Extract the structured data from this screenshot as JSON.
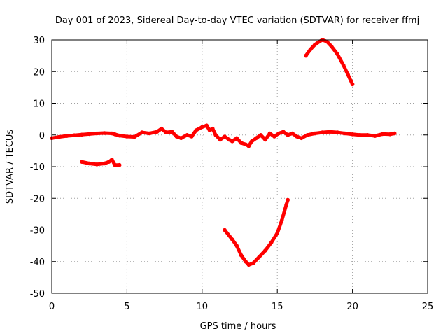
{
  "chart_data": {
    "type": "scatter",
    "title": "Day 001 of 2023, Sidereal Day-to-day VTEC variation (SDTVAR) for receiver ffmj",
    "xlabel": "GPS time / hours",
    "ylabel": "SDTVAR / TECUs",
    "xlim": [
      0,
      25
    ],
    "ylim": [
      -50,
      30
    ],
    "x_ticks": [
      "0",
      "5",
      "10",
      "15",
      "20",
      "25"
    ],
    "y_ticks": [
      "30",
      "20",
      "10",
      "0",
      "-10",
      "-20",
      "-30",
      "-40",
      "-50"
    ],
    "grid": true,
    "series_color": "#ff0000",
    "series": [
      {
        "points": [
          [
            0.0,
            -1.0
          ],
          [
            0.5,
            -0.6
          ],
          [
            1.0,
            -0.3
          ],
          [
            1.5,
            -0.1
          ],
          [
            2.0,
            0.1
          ],
          [
            2.5,
            0.3
          ],
          [
            3.0,
            0.5
          ],
          [
            3.5,
            0.6
          ],
          [
            4.0,
            0.5
          ],
          [
            4.2,
            0.2
          ],
          [
            4.5,
            -0.2
          ],
          [
            5.0,
            -0.5
          ],
          [
            5.5,
            -0.6
          ],
          [
            6.0,
            0.8
          ],
          [
            6.5,
            0.5
          ],
          [
            7.0,
            1.0
          ],
          [
            7.3,
            2.0
          ],
          [
            7.6,
            0.8
          ],
          [
            8.0,
            1.0
          ],
          [
            8.3,
            -0.5
          ],
          [
            8.6,
            -1.0
          ],
          [
            9.0,
            0.0
          ],
          [
            9.3,
            -0.5
          ],
          [
            9.6,
            1.5
          ],
          [
            10.0,
            2.5
          ],
          [
            10.3,
            3.0
          ],
          [
            10.5,
            1.5
          ],
          [
            10.7,
            2.0
          ],
          [
            10.9,
            0.0
          ],
          [
            11.2,
            -1.5
          ],
          [
            11.5,
            -0.5
          ],
          [
            11.8,
            -1.5
          ],
          [
            12.0,
            -2.0
          ],
          [
            12.3,
            -1.0
          ],
          [
            12.6,
            -2.5
          ],
          [
            12.9,
            -3.0
          ],
          [
            13.1,
            -3.5
          ],
          [
            13.3,
            -2.0
          ],
          [
            13.6,
            -1.0
          ],
          [
            13.9,
            0.0
          ],
          [
            14.2,
            -1.5
          ],
          [
            14.5,
            0.5
          ],
          [
            14.8,
            -0.5
          ],
          [
            15.1,
            0.5
          ],
          [
            15.4,
            1.0
          ],
          [
            15.7,
            0.0
          ],
          [
            16.0,
            0.5
          ],
          [
            16.3,
            -0.5
          ],
          [
            16.6,
            -1.0
          ],
          [
            17.0,
            0.0
          ],
          [
            17.5,
            0.5
          ],
          [
            18.0,
            0.8
          ],
          [
            18.5,
            1.0
          ],
          [
            19.0,
            0.8
          ],
          [
            19.5,
            0.5
          ],
          [
            20.0,
            0.2
          ],
          [
            20.5,
            0.0
          ],
          [
            21.0,
            0.0
          ],
          [
            21.5,
            -0.3
          ],
          [
            22.0,
            0.3
          ],
          [
            22.5,
            0.2
          ],
          [
            22.8,
            0.5
          ]
        ]
      },
      {
        "points": [
          [
            2.0,
            -8.5
          ],
          [
            2.5,
            -9.0
          ],
          [
            3.0,
            -9.3
          ],
          [
            3.5,
            -9.0
          ],
          [
            3.8,
            -8.5
          ],
          [
            4.0,
            -7.8
          ],
          [
            4.2,
            -9.5
          ],
          [
            4.5,
            -9.5
          ]
        ]
      },
      {
        "points": [
          [
            11.5,
            -30.0
          ],
          [
            12.0,
            -33.0
          ],
          [
            12.3,
            -35.0
          ],
          [
            12.6,
            -38.0
          ],
          [
            12.9,
            -40.0
          ],
          [
            13.1,
            -41.0
          ],
          [
            13.4,
            -40.5
          ],
          [
            13.8,
            -38.5
          ],
          [
            14.2,
            -36.5
          ],
          [
            14.6,
            -34.0
          ],
          [
            15.0,
            -31.0
          ],
          [
            15.3,
            -27.0
          ],
          [
            15.6,
            -22.0
          ],
          [
            15.7,
            -20.5
          ]
        ]
      },
      {
        "points": [
          [
            16.9,
            25.0
          ],
          [
            17.2,
            27.0
          ],
          [
            17.5,
            28.5
          ],
          [
            17.8,
            29.5
          ],
          [
            18.0,
            30.0
          ],
          [
            18.3,
            29.5
          ],
          [
            18.6,
            28.0
          ],
          [
            19.0,
            25.5
          ],
          [
            19.4,
            22.0
          ],
          [
            19.7,
            19.0
          ],
          [
            20.0,
            16.0
          ]
        ]
      }
    ]
  }
}
